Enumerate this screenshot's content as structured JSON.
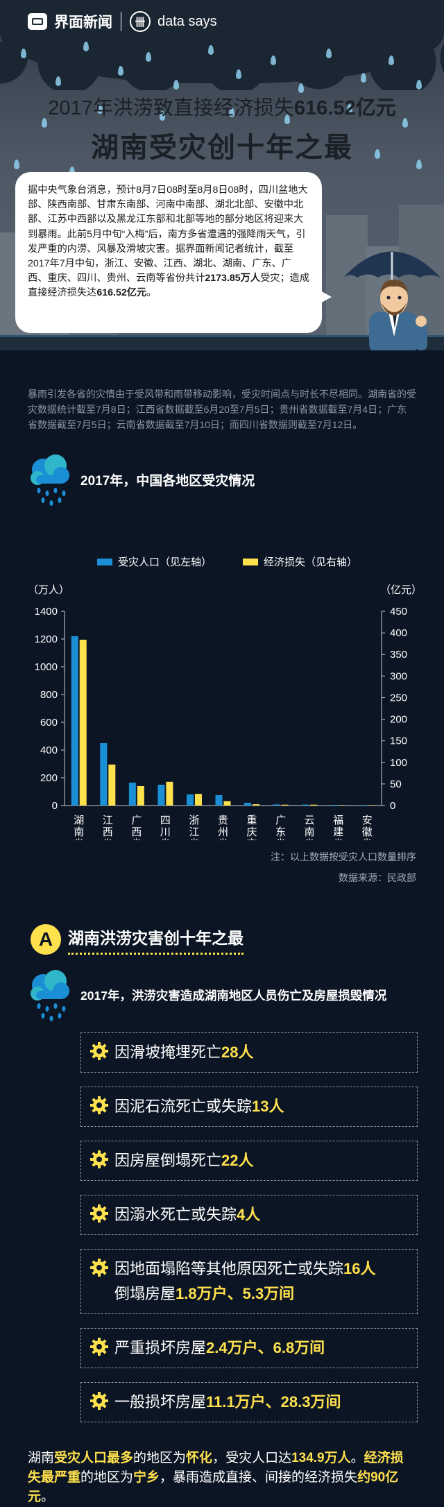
{
  "brand": {
    "name": "界面新闻",
    "icon_glyph": "卌",
    "sub": "data says"
  },
  "hero": {
    "title1_prefix": "2017年洪涝致直接经济损失",
    "title1_value": "616.52亿元",
    "title2": "湖南受灾创十年之最",
    "bubble": {
      "text_a": "据中央气象台消息，预计8月7日08时至8月8日08时，四川盆地大部、陕西南部、甘肃东南部、河南中南部、湖北北部、安徽中北部、江苏中西部以及黑龙江东部和北部等地的部分地区将迎来大到暴雨。此前5月中旬“入梅”后，南方多省遭遇的强降雨天气，引发严重的内涝、风暴及滑坡灾害。据界面新闻记者统计，截至2017年7月中旬，浙江、安徽、江西、湖北、湖南、广东、广西、重庆、四川、贵州、云南等省份共计",
      "value_a": "2173.85万人",
      "text_b": "受灾；造成直接经济损失达",
      "value_b": "616.52亿元",
      "text_c": "。"
    }
  },
  "intro": "暴雨引发各省的灾情由于受风带和雨带移动影响，受灾时间点与时长不尽相同。湖南省的受灾数据统计截至7月8日；江西省数据截至6月20至7月5日；贵州省数据截至7月4日；广东省数据截至7月5日；云南省数据截至7月10日；而四川省数据则截至7月12日。",
  "chart_section_title": "2017年，中国各地区受灾情况",
  "chart_data": {
    "type": "bar",
    "title": "2017年，中国各地区受灾情况",
    "categories": [
      "湖南省",
      "江西省",
      "广西省",
      "四川省",
      "浙江省",
      "贵州省",
      "重庆市",
      "广东省",
      "云南省",
      "福建省",
      "安徽省"
    ],
    "series": [
      {
        "name": "受灾人口（见左轴）",
        "axis": "left",
        "color": "#1b8fd6",
        "values": [
          1220,
          450,
          165,
          150,
          80,
          75,
          20,
          8,
          7,
          5,
          4
        ]
      },
      {
        "name": "经济损失（见右轴）",
        "axis": "right",
        "color": "#ffe14d",
        "values": [
          384,
          95,
          45,
          55,
          27,
          10,
          3,
          2,
          2,
          1,
          1
        ]
      }
    ],
    "yleft": {
      "label": "（万人）",
      "range": [
        0,
        1400
      ],
      "ticks": [
        "0",
        "200",
        "400",
        "600",
        "800",
        "1000",
        "1200",
        "1400"
      ]
    },
    "yright": {
      "label": "（亿元）",
      "range": [
        0,
        450
      ],
      "ticks": [
        "0",
        "50",
        "100",
        "150",
        "200",
        "250",
        "300",
        "350",
        "400",
        "450"
      ]
    },
    "legend_position": "top"
  },
  "notes": {
    "line1": "注：以上数据按受灾人口数量排序",
    "line2": "数据来源：民政部"
  },
  "section_a": {
    "badge": "A",
    "title": "湖南洪涝灾害创十年之最",
    "subtitle": "2017年，洪涝灾害造成湖南地区人员伤亡及房屋损毁情况"
  },
  "items": [
    {
      "pre": "因滑坡掩埋死亡",
      "val": "28人"
    },
    {
      "pre": "因泥石流死亡或失踪",
      "val": "13人"
    },
    {
      "pre": "因房屋倒塌死亡",
      "val": "22人"
    },
    {
      "pre": "因溺水死亡或失踪",
      "val": "4人"
    },
    {
      "pre": "因地面塌陷等其他原因死亡或失踪",
      "val": "16人",
      "pre2": "倒塌房屋",
      "val2": "1.8万户、5.3万间"
    },
    {
      "pre": "严重损坏房屋",
      "val": "2.4万户、6.8万间"
    },
    {
      "pre": "一般损坏房屋",
      "val": "11.1万户、28.3万间"
    }
  ],
  "summary": {
    "p1": "湖南",
    "h1": "受灾人口最多",
    "p2": "的地区为",
    "h2": "怀化",
    "p3": "，受灾人口达",
    "h3": "134.9万人",
    "p4": "。",
    "h4": "经济损失最严重",
    "p5": "的地区为",
    "h5": "宁乡",
    "p6": "，暴雨造成直接、间接的经济损失",
    "h6": "约90亿元",
    "p7": "。"
  }
}
